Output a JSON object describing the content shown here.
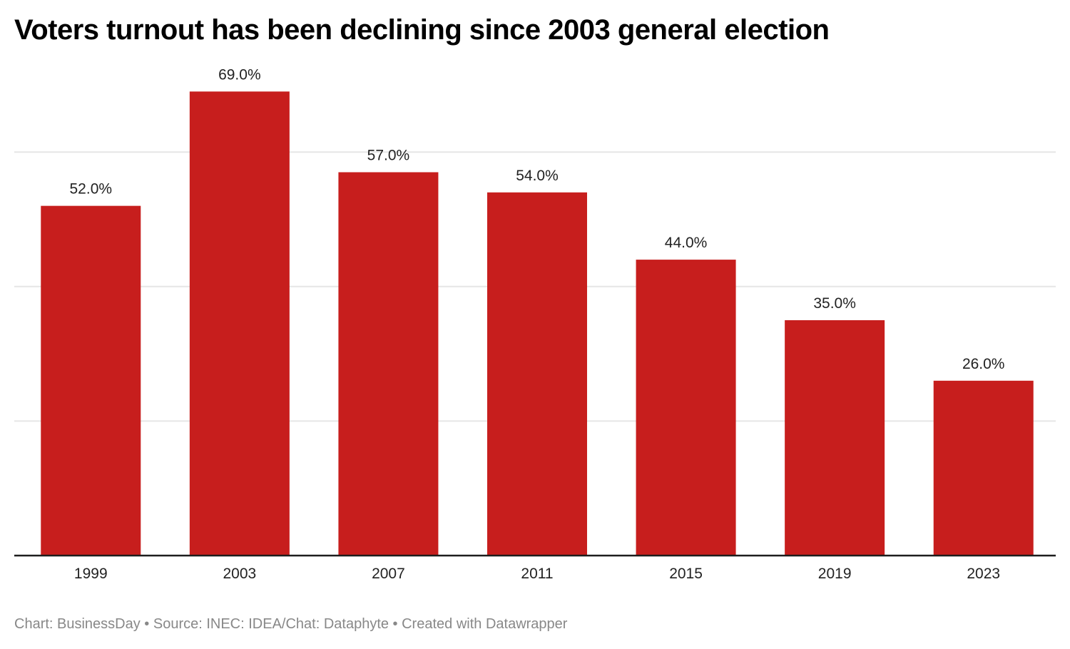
{
  "chart_data": {
    "type": "bar",
    "title": "Voters turnout has been declining since 2003 general election",
    "categories": [
      "1999",
      "2003",
      "2007",
      "2011",
      "2015",
      "2019",
      "2023"
    ],
    "values": [
      52.0,
      69.0,
      57.0,
      54.0,
      44.0,
      35.0,
      26.0
    ],
    "value_labels": [
      "52.0%",
      "69.0%",
      "57.0%",
      "54.0%",
      "44.0%",
      "35.0%",
      "26.0%"
    ],
    "xlabel": "",
    "ylabel": "",
    "ylim": [
      0,
      72
    ],
    "gridlines": [
      20,
      40,
      60
    ],
    "grid": true,
    "y_tick_labels_shown": false,
    "bar_color": "#c71e1d",
    "legend": "none"
  },
  "footer": {
    "text": "Chart: BusinessDay • Source: INEC: IDEA/Chat: Dataphyte • Created with Datawrapper"
  }
}
